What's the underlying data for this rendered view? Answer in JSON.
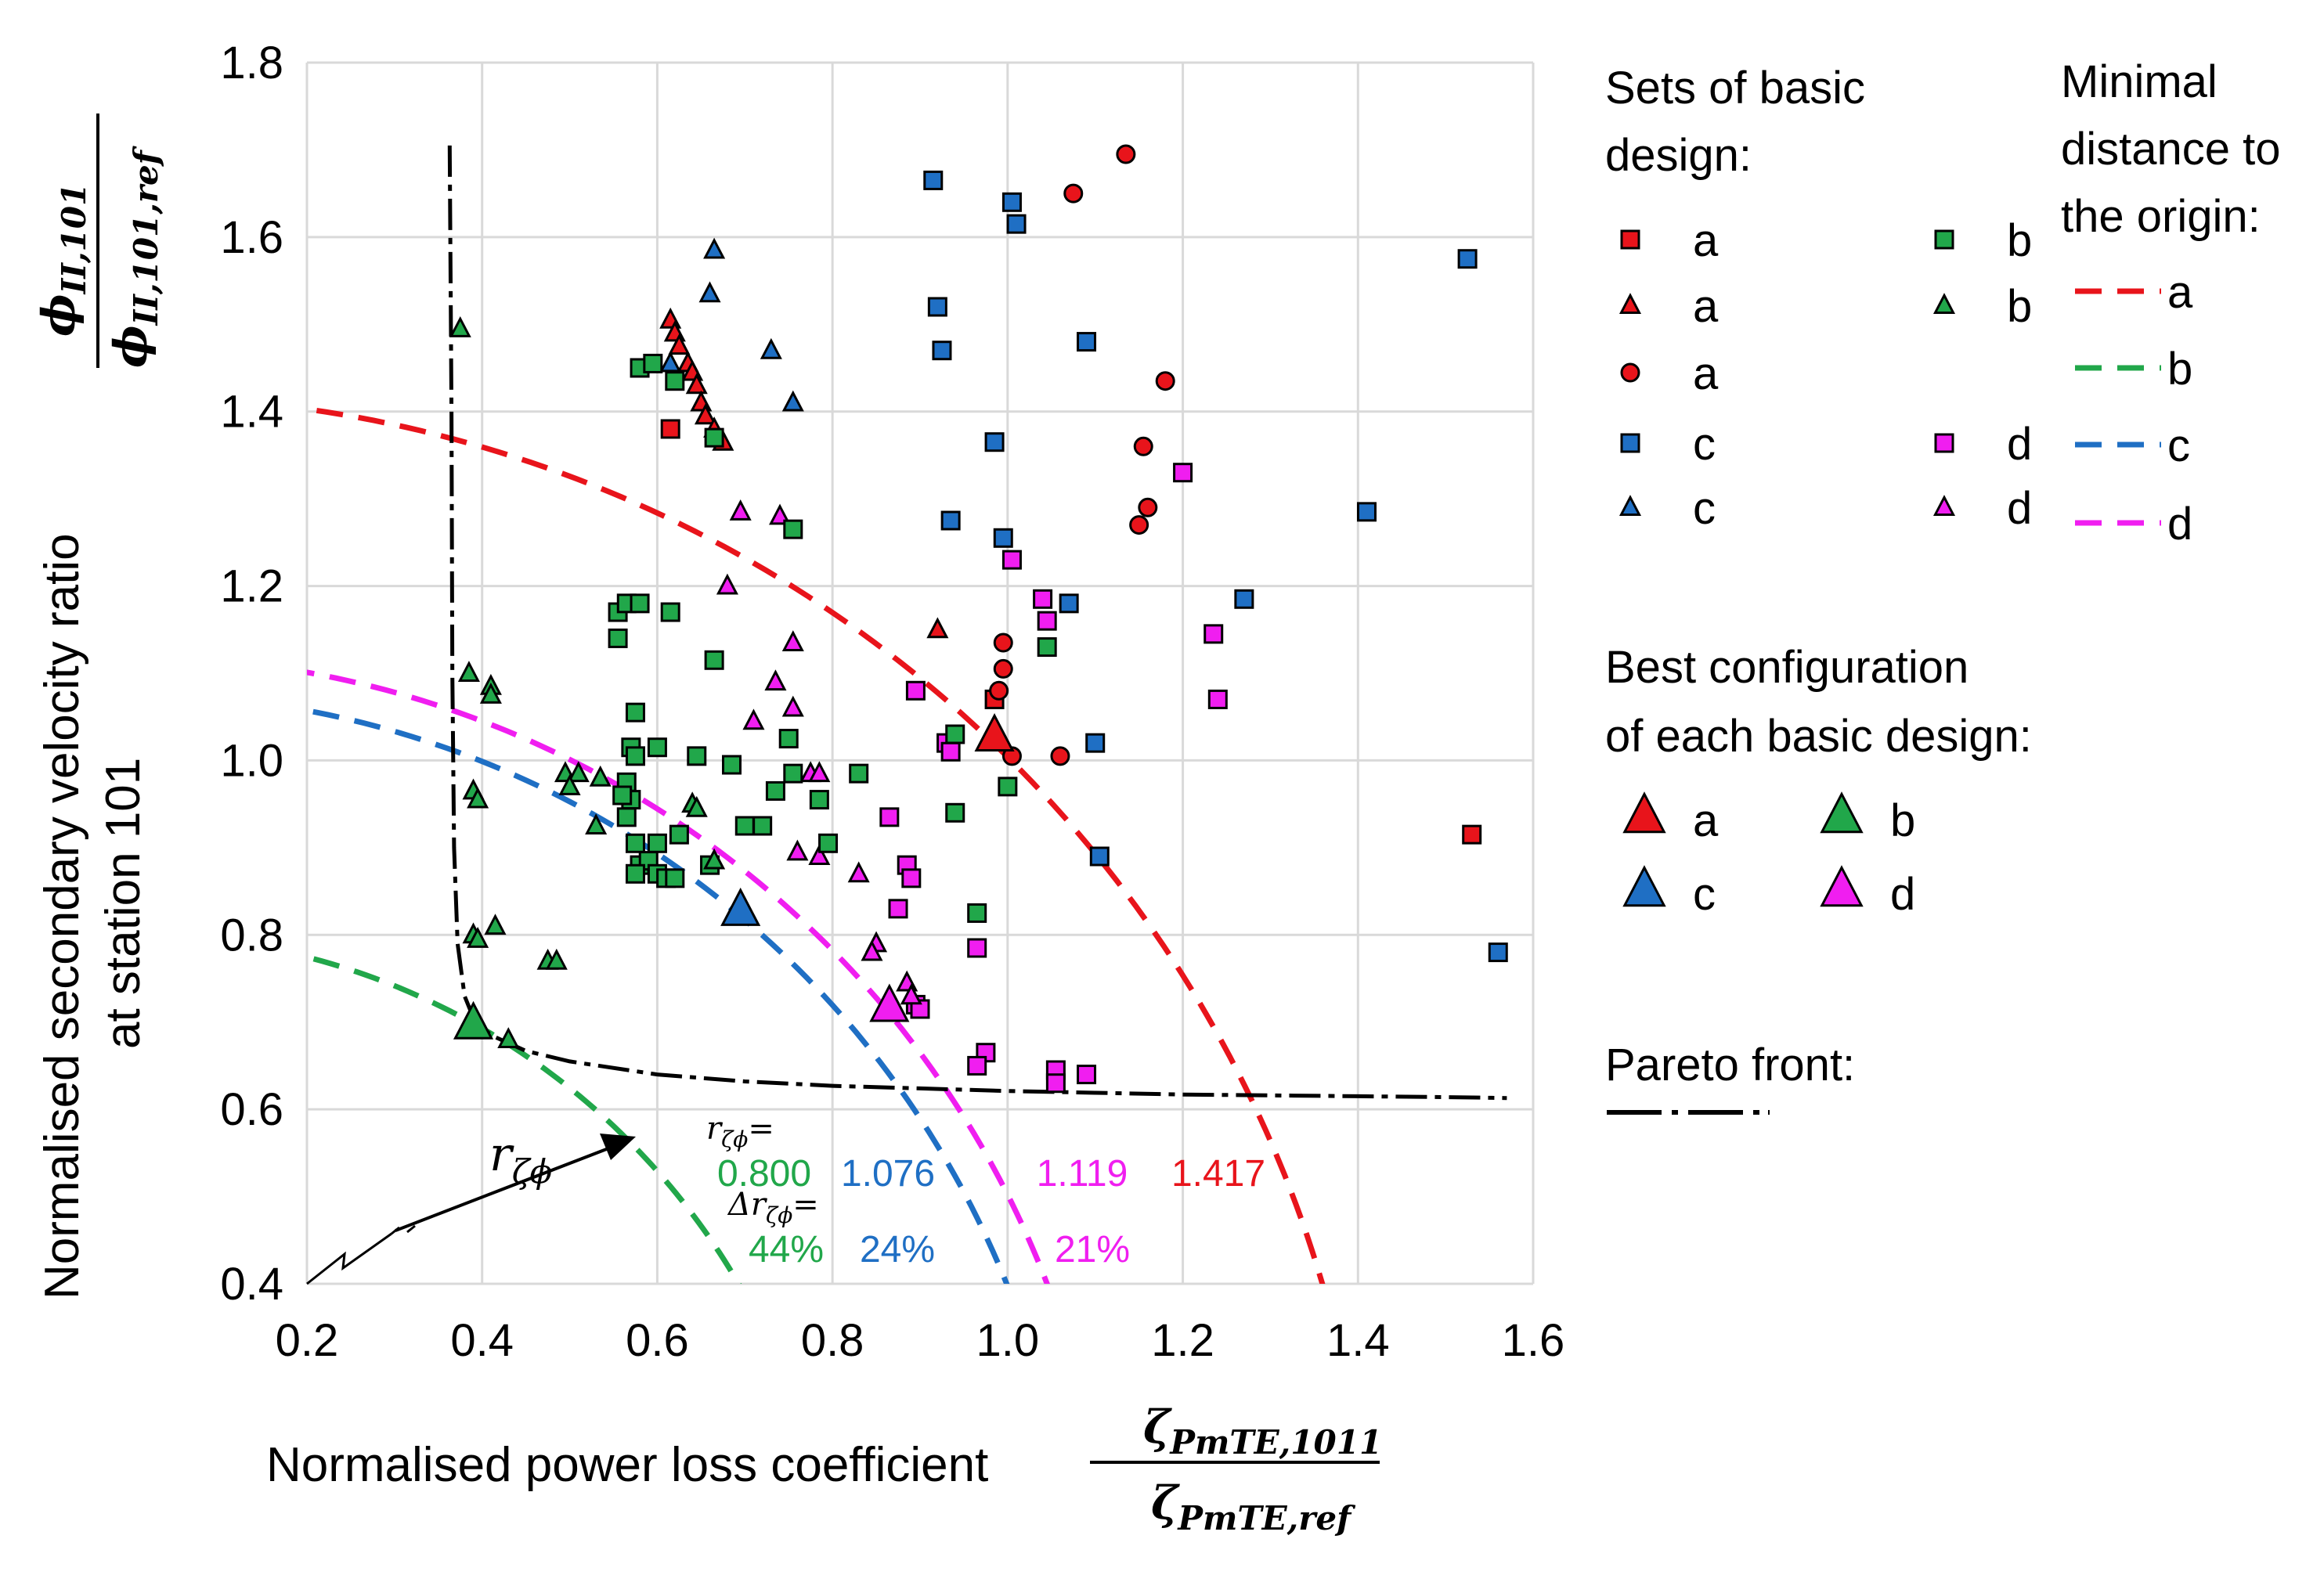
{
  "chart_data": {
    "type": "scatter",
    "xlabel": "Normalised power loss coefficient",
    "xlabel_fraction": {
      "numerator": "ζ",
      "numerator_sub": "PmTE,1011",
      "denominator": "ζ",
      "denominator_sub": "PmTE,ref"
    },
    "ylabel_lines": [
      "Normalised secondary velocity ratio",
      "at station 101"
    ],
    "ylabel_fraction": {
      "numerator": "ϕ",
      "numerator_sub": "II,101",
      "denominator": "ϕ",
      "denominator_sub": "II,101,ref"
    },
    "xlim": [
      0.2,
      1.6
    ],
    "ylim": [
      0.4,
      1.8
    ],
    "xticks": [
      "0.2",
      "0.4",
      "0.6",
      "0.8",
      "1.0",
      "1.2",
      "1.4",
      "1.6"
    ],
    "yticks": [
      "0.4",
      "0.6",
      "0.8",
      "1.0",
      "1.2",
      "1.4",
      "1.6",
      "1.8"
    ],
    "grid": true,
    "colors": {
      "a": "#e8141b",
      "b": "#21a74a",
      "c": "#1f6fc4",
      "d": "#f01ef0",
      "curve": "#000000"
    },
    "series": [
      {
        "name": "a",
        "marker": "square",
        "color": "a",
        "points": [
          [
            0.615,
            1.38
          ],
          [
            0.985,
            1.07
          ],
          [
            1.53,
            0.915
          ]
        ]
      },
      {
        "name": "a",
        "marker": "triangle",
        "color": "a",
        "points": [
          [
            0.615,
            1.505
          ],
          [
            0.62,
            1.49
          ],
          [
            0.625,
            1.475
          ],
          [
            0.635,
            1.455
          ],
          [
            0.64,
            1.445
          ],
          [
            0.645,
            1.43
          ],
          [
            0.65,
            1.41
          ],
          [
            0.655,
            1.395
          ],
          [
            0.665,
            1.38
          ],
          [
            0.675,
            1.365
          ],
          [
            0.92,
            1.15
          ]
        ]
      },
      {
        "name": "a",
        "marker": "circle",
        "color": "a",
        "points": [
          [
            1.135,
            1.695
          ],
          [
            1.075,
            1.65
          ],
          [
            1.18,
            1.435
          ],
          [
            1.155,
            1.36
          ],
          [
            1.16,
            1.29
          ],
          [
            1.15,
            1.27
          ],
          [
            0.995,
            1.135
          ],
          [
            0.995,
            1.105
          ],
          [
            0.99,
            1.08
          ],
          [
            1.005,
            1.005
          ],
          [
            1.06,
            1.005
          ]
        ]
      },
      {
        "name": "c",
        "marker": "square",
        "color": "c",
        "points": [
          [
            0.915,
            1.665
          ],
          [
            1.005,
            1.64
          ],
          [
            1.01,
            1.615
          ],
          [
            1.525,
            1.575
          ],
          [
            0.92,
            1.52
          ],
          [
            0.925,
            1.47
          ],
          [
            1.09,
            1.48
          ],
          [
            0.985,
            1.365
          ],
          [
            1.41,
            1.285
          ],
          [
            0.935,
            1.275
          ],
          [
            0.995,
            1.255
          ],
          [
            1.07,
            1.18
          ],
          [
            1.27,
            1.185
          ],
          [
            1.1,
            1.02
          ],
          [
            1.105,
            0.89
          ],
          [
            1.56,
            0.78
          ]
        ]
      },
      {
        "name": "c",
        "marker": "triangle",
        "color": "c",
        "points": [
          [
            0.665,
            1.585
          ],
          [
            0.66,
            1.535
          ],
          [
            0.615,
            1.455
          ],
          [
            0.73,
            1.47
          ],
          [
            0.755,
            1.41
          ]
        ]
      },
      {
        "name": "d",
        "marker": "square",
        "color": "d",
        "points": [
          [
            1.2,
            1.33
          ],
          [
            1.005,
            1.23
          ],
          [
            1.04,
            1.185
          ],
          [
            1.045,
            1.16
          ],
          [
            1.235,
            1.145
          ],
          [
            1.24,
            1.07
          ],
          [
            0.895,
            1.08
          ],
          [
            0.93,
            1.02
          ],
          [
            0.935,
            1.01
          ],
          [
            0.865,
            0.935
          ],
          [
            0.885,
            0.88
          ],
          [
            0.89,
            0.865
          ],
          [
            0.875,
            0.83
          ],
          [
            0.895,
            0.72
          ],
          [
            0.9,
            0.715
          ],
          [
            0.965,
            0.785
          ],
          [
            0.975,
            0.665
          ],
          [
            0.965,
            0.65
          ],
          [
            1.055,
            0.645
          ],
          [
            1.055,
            0.63
          ],
          [
            1.09,
            0.64
          ]
        ]
      },
      {
        "name": "d",
        "marker": "triangle",
        "color": "d",
        "points": [
          [
            0.695,
            1.285
          ],
          [
            0.74,
            1.28
          ],
          [
            0.68,
            1.2
          ],
          [
            0.755,
            1.135
          ],
          [
            0.735,
            1.09
          ],
          [
            0.755,
            1.06
          ],
          [
            0.71,
            1.045
          ],
          [
            0.775,
            0.985
          ],
          [
            0.785,
            0.985
          ],
          [
            0.76,
            0.895
          ],
          [
            0.785,
            0.89
          ],
          [
            0.83,
            0.87
          ],
          [
            0.85,
            0.79
          ],
          [
            0.845,
            0.78
          ],
          [
            0.885,
            0.745
          ],
          [
            0.89,
            0.73
          ]
        ]
      },
      {
        "name": "b",
        "marker": "square",
        "color": "b",
        "points": [
          [
            0.58,
            1.45
          ],
          [
            0.595,
            1.455
          ],
          [
            0.62,
            1.435
          ],
          [
            0.665,
            1.37
          ],
          [
            0.755,
            1.265
          ],
          [
            0.555,
            1.17
          ],
          [
            0.565,
            1.18
          ],
          [
            0.58,
            1.18
          ],
          [
            0.615,
            1.17
          ],
          [
            0.555,
            1.14
          ],
          [
            0.665,
            1.115
          ],
          [
            0.575,
            1.055
          ],
          [
            0.57,
            1.015
          ],
          [
            0.6,
            1.015
          ],
          [
            0.645,
            1.005
          ],
          [
            0.575,
            1.005
          ],
          [
            0.565,
            0.975
          ],
          [
            0.57,
            0.955
          ],
          [
            0.56,
            0.96
          ],
          [
            0.565,
            0.935
          ],
          [
            0.575,
            0.905
          ],
          [
            0.58,
            0.88
          ],
          [
            0.59,
            0.885
          ],
          [
            0.6,
            0.87
          ],
          [
            0.575,
            0.87
          ],
          [
            0.61,
            0.865
          ],
          [
            0.62,
            0.865
          ],
          [
            0.625,
            0.915
          ],
          [
            0.6,
            0.905
          ],
          [
            0.66,
            0.88
          ],
          [
            0.685,
            0.995
          ],
          [
            0.75,
            1.025
          ],
          [
            0.735,
            0.965
          ],
          [
            0.755,
            0.985
          ],
          [
            0.785,
            0.955
          ],
          [
            0.83,
            0.985
          ],
          [
            0.795,
            0.905
          ],
          [
            0.7,
            0.925
          ],
          [
            0.72,
            0.925
          ],
          [
            0.94,
            1.03
          ],
          [
            0.94,
            0.94
          ],
          [
            0.965,
            0.825
          ],
          [
            1.045,
            1.13
          ],
          [
            1.0,
            0.97
          ]
        ]
      },
      {
        "name": "b",
        "marker": "triangle",
        "color": "b",
        "points": [
          [
            0.375,
            1.495
          ],
          [
            0.385,
            1.1
          ],
          [
            0.41,
            1.085
          ],
          [
            0.41,
            1.075
          ],
          [
            0.39,
            0.965
          ],
          [
            0.395,
            0.955
          ],
          [
            0.39,
            0.8
          ],
          [
            0.395,
            0.795
          ],
          [
            0.415,
            0.81
          ],
          [
            0.475,
            0.77
          ],
          [
            0.485,
            0.77
          ],
          [
            0.495,
            0.985
          ],
          [
            0.51,
            0.985
          ],
          [
            0.5,
            0.97
          ],
          [
            0.535,
            0.98
          ],
          [
            0.53,
            0.925
          ],
          [
            0.43,
            0.68
          ],
          [
            0.64,
            0.95
          ],
          [
            0.645,
            0.945
          ],
          [
            0.665,
            0.885
          ]
        ]
      }
    ],
    "best_configurations": [
      {
        "name": "a",
        "color": "a",
        "point": [
          0.985,
          1.025
        ]
      },
      {
        "name": "b",
        "color": "b",
        "point": [
          0.39,
          0.695
        ]
      },
      {
        "name": "c",
        "color": "c",
        "point": [
          0.695,
          0.825
        ]
      },
      {
        "name": "d",
        "color": "d",
        "point": [
          0.865,
          0.715
        ]
      }
    ],
    "distance_curves": [
      {
        "name": "a",
        "color": "a",
        "radius": 1.417
      },
      {
        "name": "b",
        "color": "b",
        "radius": 0.8
      },
      {
        "name": "c",
        "color": "c",
        "radius": 1.076
      },
      {
        "name": "d",
        "color": "d",
        "radius": 1.119
      }
    ],
    "pareto_front": [
      [
        0.363,
        1.705
      ],
      [
        0.365,
        1.4
      ],
      [
        0.366,
        1.1
      ],
      [
        0.368,
        0.9
      ],
      [
        0.372,
        0.79
      ],
      [
        0.38,
        0.73
      ],
      [
        0.39,
        0.705
      ],
      [
        0.41,
        0.685
      ],
      [
        0.45,
        0.667
      ],
      [
        0.5,
        0.655
      ],
      [
        0.6,
        0.64
      ],
      [
        0.7,
        0.632
      ],
      [
        0.8,
        0.627
      ],
      [
        0.9,
        0.624
      ],
      [
        1.0,
        0.621
      ],
      [
        1.1,
        0.619
      ],
      [
        1.2,
        0.617
      ],
      [
        1.3,
        0.616
      ],
      [
        1.4,
        0.615
      ],
      [
        1.5,
        0.614
      ],
      [
        1.57,
        0.613
      ]
    ],
    "annotations": {
      "r_label": "r",
      "r_sub": "ζϕ",
      "r_eq_label": "r",
      "r_eq_sub": "ζϕ",
      "r_eq_suffix": "=",
      "delta_label": "Δr",
      "delta_sub": "ζϕ",
      "delta_suffix": "=",
      "r_values": [
        {
          "text": "0.800",
          "color": "b"
        },
        {
          "text": "1.076",
          "color": "c"
        },
        {
          "text": "1.119",
          "color": "d"
        },
        {
          "text": "1.417",
          "color": "a"
        }
      ],
      "delta_values": [
        {
          "text": "44%",
          "color": "b"
        },
        {
          "text": "24%",
          "color": "c"
        },
        {
          "text": "21%",
          "color": "d"
        }
      ]
    },
    "legend": {
      "sets_title": [
        "Sets of basic",
        "design:"
      ],
      "sets_entries": [
        {
          "marker": "square",
          "color": "a",
          "label": "a"
        },
        {
          "marker": "square",
          "color": "b",
          "label": "b"
        },
        {
          "marker": "triangle",
          "color": "a",
          "label": "a"
        },
        {
          "marker": "triangle",
          "color": "b",
          "label": "b"
        },
        {
          "marker": "circle",
          "color": "a",
          "label": "a"
        },
        {
          "marker": "square",
          "color": "c",
          "label": "c"
        },
        {
          "marker": "square",
          "color": "d",
          "label": "d"
        },
        {
          "marker": "triangle",
          "color": "c",
          "label": "c"
        },
        {
          "marker": "triangle",
          "color": "d",
          "label": "d"
        }
      ],
      "distance_title": [
        "Minimal",
        "distance to",
        "the origin:"
      ],
      "distance_entries": [
        {
          "color": "a",
          "label": "a"
        },
        {
          "color": "b",
          "label": "b"
        },
        {
          "color": "c",
          "label": "c"
        },
        {
          "color": "d",
          "label": "d"
        }
      ],
      "best_title": [
        "Best configuration",
        "of each basic design:"
      ],
      "best_entries": [
        {
          "color": "a",
          "label": "a"
        },
        {
          "color": "b",
          "label": "b"
        },
        {
          "color": "c",
          "label": "c"
        },
        {
          "color": "d",
          "label": "d"
        }
      ],
      "pareto_title": "Pareto front:"
    }
  }
}
